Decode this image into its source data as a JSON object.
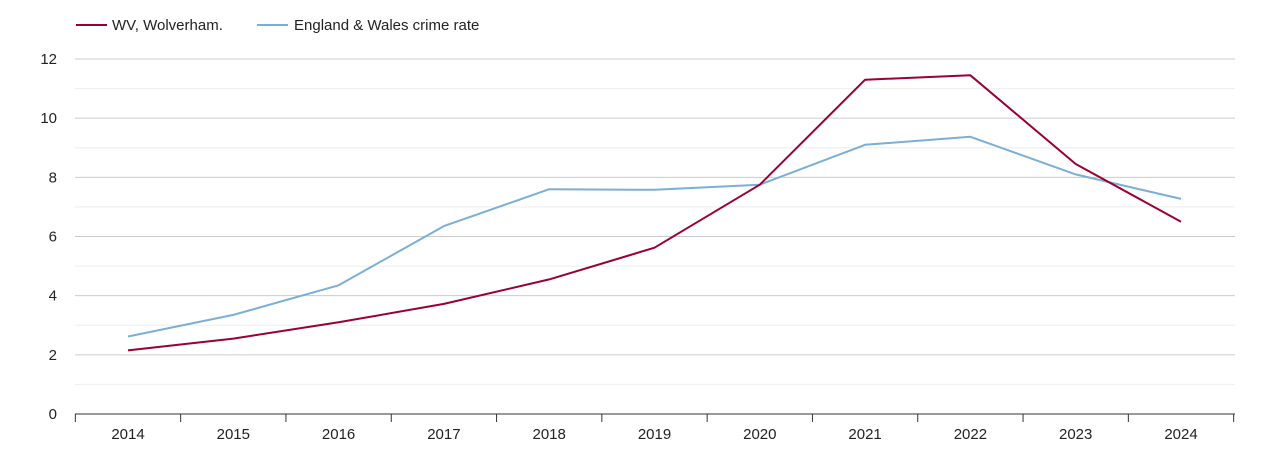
{
  "chart_data": {
    "type": "line",
    "title": "",
    "xlabel": "",
    "ylabel": "",
    "x": [
      "2014",
      "2015",
      "2016",
      "2017",
      "2018",
      "2019",
      "2020",
      "2021",
      "2022",
      "2023",
      "2024"
    ],
    "series": [
      {
        "name": "WV, Wolverham.",
        "color": "#990033",
        "values": [
          2.15,
          2.55,
          3.1,
          3.72,
          4.55,
          5.62,
          7.75,
          11.3,
          11.45,
          8.45,
          6.5
        ]
      },
      {
        "name": "England & Wales crime rate",
        "color": "#7bafd4",
        "values": [
          2.62,
          3.35,
          4.35,
          6.35,
          7.6,
          7.58,
          7.75,
          9.1,
          9.37,
          8.1,
          7.27
        ]
      }
    ],
    "ylim": [
      0,
      12
    ],
    "yticks": [
      "0",
      "2",
      "4",
      "6",
      "8",
      "10",
      "12"
    ],
    "grid": true,
    "legend_position": "top-left"
  }
}
